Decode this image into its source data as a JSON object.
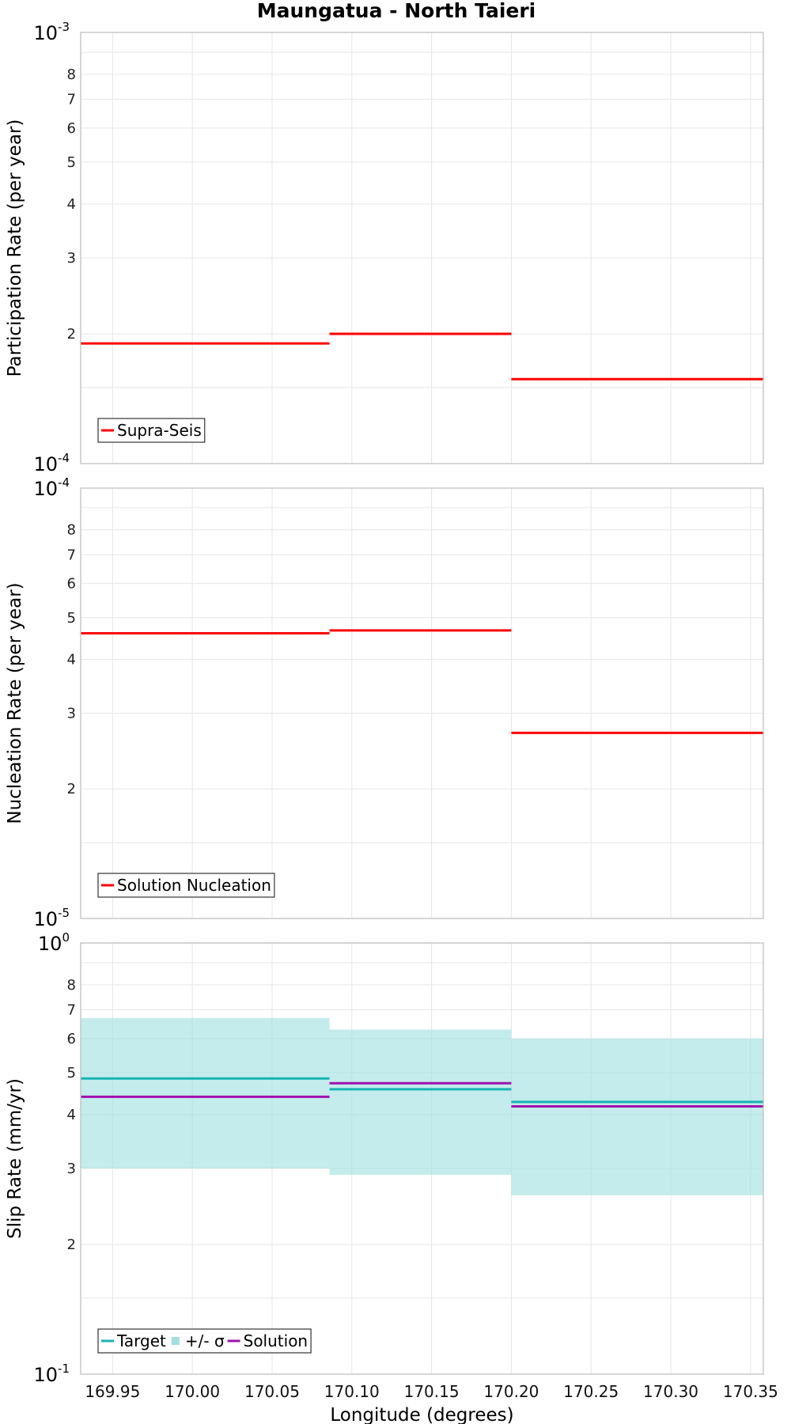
{
  "chart_data": [
    {
      "type": "line",
      "title": "Maungatua - North Taieri",
      "xlabel": "",
      "ylabel": "Participation Rate (per year)",
      "yscale": "log",
      "xlim": [
        169.93,
        170.358
      ],
      "ylim": [
        0.0001,
        0.001
      ],
      "y_major_labels": [
        {
          "value": 0.001,
          "base": "10",
          "exp": "-3"
        },
        {
          "value": 0.0001,
          "base": "10",
          "exp": "-4"
        }
      ],
      "y_minor_labels": [
        {
          "value": 0.0008,
          "label": "8"
        },
        {
          "value": 0.0007,
          "label": "7"
        },
        {
          "value": 0.0006,
          "label": "6"
        },
        {
          "value": 0.0005,
          "label": "5"
        },
        {
          "value": 0.0004,
          "label": "4"
        },
        {
          "value": 0.0003,
          "label": "3"
        },
        {
          "value": 0.0002,
          "label": "2"
        }
      ],
      "x_ticks": [
        169.95,
        170.0,
        170.05,
        170.1,
        170.15,
        170.2,
        170.25,
        170.3,
        170.35
      ],
      "x_tick_labels": [],
      "series": [
        {
          "name": "Supra-Seis",
          "color": "#ff0000",
          "style": "step",
          "segments": [
            {
              "x0": 169.93,
              "x1": 170.086,
              "y": 0.00019
            },
            {
              "x0": 170.086,
              "x1": 170.2,
              "y": 0.0002
            },
            {
              "x0": 170.2,
              "x1": 170.358,
              "y": 0.000157
            }
          ]
        }
      ],
      "legend": [
        {
          "label": "Supra-Seis",
          "color": "#ff0000",
          "kind": "line"
        }
      ]
    },
    {
      "type": "line",
      "title": "",
      "xlabel": "",
      "ylabel": "Nucleation Rate (per year)",
      "yscale": "log",
      "xlim": [
        169.93,
        170.358
      ],
      "ylim": [
        1e-05,
        0.0001
      ],
      "y_major_labels": [
        {
          "value": 0.0001,
          "base": "10",
          "exp": "-4"
        },
        {
          "value": 1e-05,
          "base": "10",
          "exp": "-5"
        }
      ],
      "y_minor_labels": [
        {
          "value": 8e-05,
          "label": "8"
        },
        {
          "value": 7e-05,
          "label": "7"
        },
        {
          "value": 6e-05,
          "label": "6"
        },
        {
          "value": 5e-05,
          "label": "5"
        },
        {
          "value": 4e-05,
          "label": "4"
        },
        {
          "value": 3e-05,
          "label": "3"
        },
        {
          "value": 2e-05,
          "label": "2"
        }
      ],
      "x_ticks": [
        169.95,
        170.0,
        170.05,
        170.1,
        170.15,
        170.2,
        170.25,
        170.3,
        170.35
      ],
      "x_tick_labels": [],
      "series": [
        {
          "name": "Solution Nucleation",
          "color": "#ff0000",
          "style": "step",
          "segments": [
            {
              "x0": 169.93,
              "x1": 170.086,
              "y": 4.6e-05
            },
            {
              "x0": 170.086,
              "x1": 170.2,
              "y": 4.67e-05
            },
            {
              "x0": 170.2,
              "x1": 170.358,
              "y": 2.7e-05
            }
          ]
        }
      ],
      "legend": [
        {
          "label": "Solution Nucleation",
          "color": "#ff0000",
          "kind": "line"
        }
      ]
    },
    {
      "type": "line",
      "title": "",
      "xlabel": "Longitude (degrees)",
      "ylabel": "Slip Rate (mm/yr)",
      "yscale": "log",
      "xlim": [
        169.93,
        170.358
      ],
      "ylim": [
        0.1,
        1.0
      ],
      "y_major_labels": [
        {
          "value": 1.0,
          "base": "10",
          "exp": "0"
        },
        {
          "value": 0.1,
          "base": "10",
          "exp": "-1"
        }
      ],
      "y_minor_labels": [
        {
          "value": 0.8,
          "label": "8"
        },
        {
          "value": 0.7,
          "label": "7"
        },
        {
          "value": 0.6,
          "label": "6"
        },
        {
          "value": 0.5,
          "label": "5"
        },
        {
          "value": 0.4,
          "label": "4"
        },
        {
          "value": 0.3,
          "label": "3"
        },
        {
          "value": 0.2,
          "label": "2"
        }
      ],
      "x_ticks": [
        169.95,
        170.0,
        170.05,
        170.1,
        170.15,
        170.2,
        170.25,
        170.3,
        170.35
      ],
      "x_tick_labels": [
        "169.95",
        "170.00",
        "170.05",
        "170.10",
        "170.15",
        "170.20",
        "170.25",
        "170.30",
        "170.35"
      ],
      "bands": [
        {
          "name": "+/- σ",
          "color": "#9fe0e0",
          "opacity": 0.62,
          "segments": [
            {
              "x0": 169.93,
              "x1": 170.086,
              "y0": 0.3,
              "y1": 0.67
            },
            {
              "x0": 170.086,
              "x1": 170.2,
              "y0": 0.29,
              "y1": 0.63
            },
            {
              "x0": 170.2,
              "x1": 170.358,
              "y0": 0.26,
              "y1": 0.6
            }
          ]
        }
      ],
      "series": [
        {
          "name": "Target",
          "color": "#17b3b3",
          "style": "step",
          "segments": [
            {
              "x0": 169.93,
              "x1": 170.086,
              "y": 0.485
            },
            {
              "x0": 170.086,
              "x1": 170.2,
              "y": 0.458
            },
            {
              "x0": 170.2,
              "x1": 170.358,
              "y": 0.428
            }
          ]
        },
        {
          "name": "Solution",
          "color": "#a010b0",
          "style": "step",
          "segments": [
            {
              "x0": 169.93,
              "x1": 170.086,
              "y": 0.44
            },
            {
              "x0": 170.086,
              "x1": 170.2,
              "y": 0.473
            },
            {
              "x0": 170.2,
              "x1": 170.358,
              "y": 0.418
            }
          ]
        }
      ],
      "legend": [
        {
          "label": "Target",
          "color": "#17b3b3",
          "kind": "line"
        },
        {
          "label": "+/- σ",
          "color": "#9fe0e0",
          "kind": "patch"
        },
        {
          "label": "Solution",
          "color": "#a010b0",
          "kind": "line"
        }
      ]
    }
  ]
}
